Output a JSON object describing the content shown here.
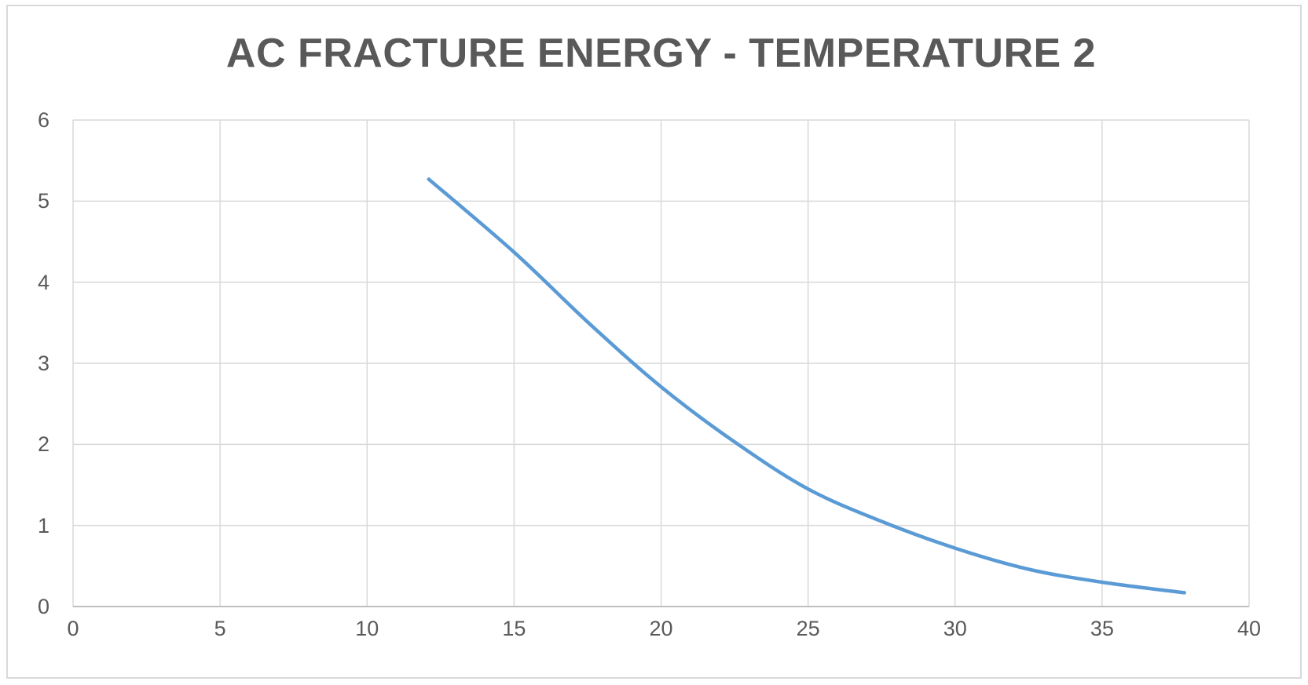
{
  "chart": {
    "title": "AC FRACTURE ENERGY - TEMPERATURE 2"
  },
  "chart_data": {
    "type": "line",
    "title": "AC FRACTURE ENERGY - TEMPERATURE 2",
    "xlabel": "",
    "ylabel": "",
    "xlim": [
      0,
      40
    ],
    "ylim": [
      0,
      6
    ],
    "x_ticks": [
      0,
      5,
      10,
      15,
      20,
      25,
      30,
      35,
      40
    ],
    "y_ticks": [
      0,
      1,
      2,
      3,
      4,
      5,
      6
    ],
    "grid": true,
    "legend": false,
    "series": [
      {
        "points": [
          [
            12.1,
            5.27
          ],
          [
            15.0,
            4.37
          ],
          [
            17.5,
            3.51
          ],
          [
            20.0,
            2.71
          ],
          [
            22.5,
            2.03
          ],
          [
            25.0,
            1.45
          ],
          [
            27.5,
            1.05
          ],
          [
            30.0,
            0.72
          ],
          [
            32.5,
            0.46
          ],
          [
            35.0,
            0.3
          ],
          [
            37.8,
            0.17
          ]
        ]
      }
    ],
    "colors": {
      "line": "#5B9BD5",
      "gridline": "#D9D9D9",
      "axis_line": "#BFBFBF",
      "text": "#595959",
      "border": "#D9D9D9",
      "background": "#FFFFFF"
    }
  }
}
